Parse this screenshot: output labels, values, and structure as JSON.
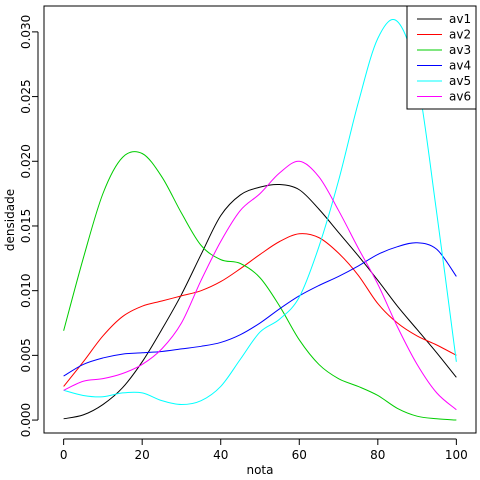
{
  "chart_data": {
    "type": "line",
    "title": "",
    "xlabel": "nota",
    "ylabel": "densidade",
    "xlim": [
      -5,
      105
    ],
    "ylim": [
      -0.001,
      0.032
    ],
    "grid": false,
    "legend_position": "top-right",
    "x_ticks": [
      0,
      20,
      40,
      60,
      80,
      100
    ],
    "x_tick_labels": [
      "0",
      "20",
      "40",
      "60",
      "80",
      "100"
    ],
    "y_ticks": [
      0.0,
      0.005,
      0.01,
      0.015,
      0.02,
      0.025,
      0.03
    ],
    "y_tick_labels": [
      "0.000",
      "0.005",
      "0.010",
      "0.015",
      "0.020",
      "0.025",
      "0.030"
    ],
    "x": [
      0,
      5,
      10,
      15,
      20,
      25,
      30,
      35,
      40,
      45,
      50,
      55,
      60,
      65,
      70,
      75,
      80,
      85,
      90,
      95,
      100
    ],
    "series": [
      {
        "name": "av1",
        "color": "#000000",
        "values": [
          0.0001,
          0.0004,
          0.0012,
          0.0025,
          0.0045,
          0.007,
          0.0097,
          0.0128,
          0.0158,
          0.0174,
          0.018,
          0.0182,
          0.0178,
          0.0163,
          0.0145,
          0.0127,
          0.0108,
          0.0088,
          0.007,
          0.0052,
          0.0033
        ]
      },
      {
        "name": "av2",
        "color": "#ff0000",
        "values": [
          0.0026,
          0.0045,
          0.0065,
          0.008,
          0.0088,
          0.0092,
          0.0096,
          0.01,
          0.0107,
          0.0117,
          0.0128,
          0.0138,
          0.0144,
          0.0141,
          0.0129,
          0.0112,
          0.009,
          0.0075,
          0.0065,
          0.0058,
          0.005
        ]
      },
      {
        "name": "av3",
        "color": "#00cd00",
        "values": [
          0.0069,
          0.0125,
          0.0175,
          0.0203,
          0.0206,
          0.0188,
          0.016,
          0.0135,
          0.0124,
          0.0121,
          0.011,
          0.0088,
          0.0062,
          0.0043,
          0.0032,
          0.0026,
          0.0019,
          0.0009,
          0.0003,
          0.0001,
          0.0
        ]
      },
      {
        "name": "av4",
        "color": "#0000ff",
        "values": [
          0.0034,
          0.0043,
          0.0048,
          0.0051,
          0.0052,
          0.0053,
          0.0055,
          0.0057,
          0.006,
          0.0066,
          0.0075,
          0.0086,
          0.0096,
          0.0104,
          0.0111,
          0.0119,
          0.0128,
          0.0134,
          0.0137,
          0.0132,
          0.0111
        ]
      },
      {
        "name": "av5",
        "color": "#00ffff",
        "values": [
          0.0023,
          0.0019,
          0.0018,
          0.0021,
          0.0021,
          0.0015,
          0.0012,
          0.0015,
          0.0026,
          0.0047,
          0.0068,
          0.0078,
          0.0095,
          0.0134,
          0.0185,
          0.0245,
          0.0295,
          0.0308,
          0.0265,
          0.016,
          0.0045
        ]
      },
      {
        "name": "av6",
        "color": "#ff00ff",
        "values": [
          0.0023,
          0.003,
          0.0032,
          0.0036,
          0.0043,
          0.0055,
          0.0075,
          0.0108,
          0.0138,
          0.0162,
          0.0175,
          0.0191,
          0.02,
          0.0188,
          0.0162,
          0.0133,
          0.0105,
          0.0072,
          0.0043,
          0.0021,
          0.0008
        ]
      }
    ]
  }
}
